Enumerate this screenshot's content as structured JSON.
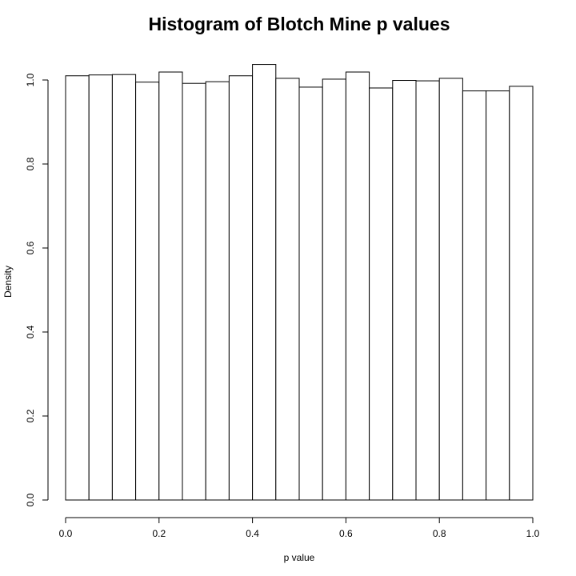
{
  "chart_data": {
    "type": "bar",
    "title": "Histogram of Blotch Mine p values",
    "xlabel": "p value",
    "ylabel": "Density",
    "xlim": [
      0,
      1
    ],
    "ylim": [
      0,
      1.04
    ],
    "bin_width": 0.05,
    "bins": [
      {
        "x0": 0.0,
        "x1": 0.05,
        "value": 1.01
      },
      {
        "x0": 0.05,
        "x1": 0.1,
        "value": 1.012
      },
      {
        "x0": 0.1,
        "x1": 0.15,
        "value": 1.013
      },
      {
        "x0": 0.15,
        "x1": 0.2,
        "value": 0.995
      },
      {
        "x0": 0.2,
        "x1": 0.25,
        "value": 1.019
      },
      {
        "x0": 0.25,
        "x1": 0.3,
        "value": 0.992
      },
      {
        "x0": 0.3,
        "x1": 0.35,
        "value": 0.996
      },
      {
        "x0": 0.35,
        "x1": 0.4,
        "value": 1.01
      },
      {
        "x0": 0.4,
        "x1": 0.45,
        "value": 1.037
      },
      {
        "x0": 0.45,
        "x1": 0.5,
        "value": 1.004
      },
      {
        "x0": 0.5,
        "x1": 0.55,
        "value": 0.983
      },
      {
        "x0": 0.55,
        "x1": 0.6,
        "value": 1.002
      },
      {
        "x0": 0.6,
        "x1": 0.65,
        "value": 1.019
      },
      {
        "x0": 0.65,
        "x1": 0.7,
        "value": 0.981
      },
      {
        "x0": 0.7,
        "x1": 0.75,
        "value": 0.999
      },
      {
        "x0": 0.75,
        "x1": 0.8,
        "value": 0.998
      },
      {
        "x0": 0.8,
        "x1": 0.85,
        "value": 1.004
      },
      {
        "x0": 0.85,
        "x1": 0.9,
        "value": 0.974
      },
      {
        "x0": 0.9,
        "x1": 0.95,
        "value": 0.974
      },
      {
        "x0": 0.95,
        "x1": 1.0,
        "value": 0.985
      }
    ],
    "x_ticks": [
      0.0,
      0.2,
      0.4,
      0.6,
      0.8,
      1.0
    ],
    "x_tick_labels": [
      "0.0",
      "0.2",
      "0.4",
      "0.6",
      "0.8",
      "1.0"
    ],
    "y_ticks": [
      0.0,
      0.2,
      0.4,
      0.6,
      0.8,
      1.0
    ],
    "y_tick_labels": [
      "0.0",
      "0.2",
      "0.4",
      "0.6",
      "0.8",
      "1.0"
    ],
    "grid": false,
    "legend": "none",
    "bar_fill": "#ffffff",
    "bar_stroke": "#000000"
  }
}
